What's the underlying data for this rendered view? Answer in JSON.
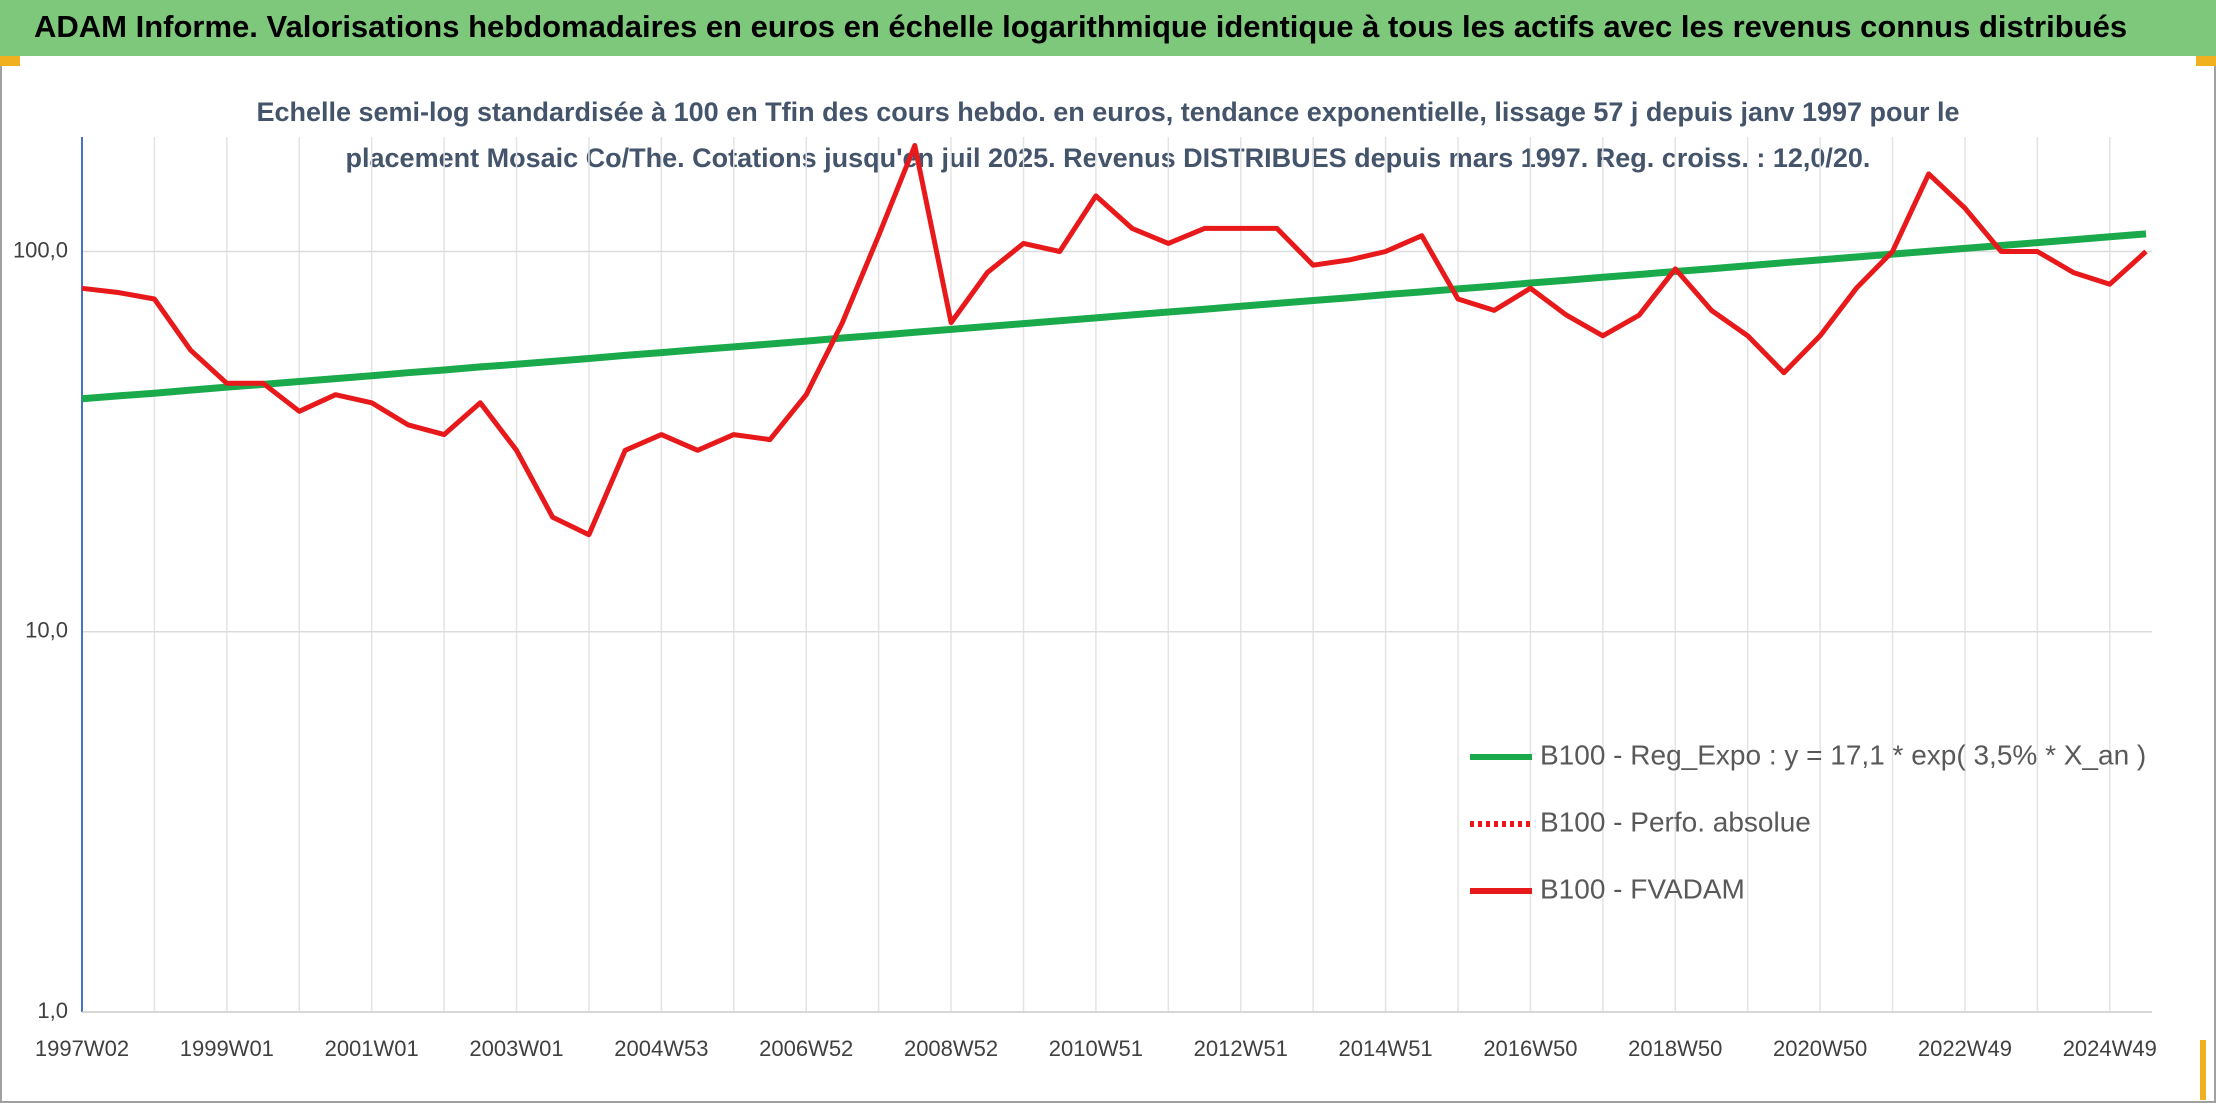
{
  "chart_data": {
    "type": "line",
    "title": "ADAM Informe. Valorisations hebdomadaires en euros en échelle logarithmique identique à tous les actifs avec les revenus connus distribués",
    "subtitle": [
      "Echelle semi-log standardisée à 100 en Tfin des cours hebdo. en euros, tendance exponentielle, lissage 57 j depuis janv 1997 pour le",
      "placement Mosaic Co/The. Cotations jusqu'en juil 2025. Revenus DISTRIBUES depuis mars 1997. Reg. croiss. : 12,0/20."
    ],
    "categories": [
      "1997W02",
      null,
      null,
      null,
      "1999W01",
      null,
      null,
      null,
      "2001W01",
      null,
      null,
      null,
      "2003W01",
      null,
      null,
      null,
      "2004W53",
      null,
      null,
      null,
      "2006W52",
      null,
      null,
      null,
      "2008W52",
      null,
      null,
      null,
      "2010W51",
      null,
      null,
      null,
      "2012W51",
      null,
      null,
      null,
      "2014W51",
      null,
      null,
      null,
      "2016W50",
      null,
      null,
      null,
      "2018W50",
      null,
      null,
      null,
      "2020W50",
      null,
      null,
      null,
      "2022W49",
      null,
      null,
      null,
      "2024W49",
      null
    ],
    "series": [
      {
        "name": "B100 - Reg_Expo : y = 17,1 * exp( 3,5% *  X_an )",
        "color": "#1aaa4b",
        "line": "solid",
        "values": [
          41.0,
          41.7,
          42.4,
          43.2,
          44.0,
          44.7,
          45.5,
          46.3,
          47.1,
          48.0,
          48.8,
          49.7,
          50.5,
          51.4,
          52.3,
          53.3,
          54.2,
          55.2,
          56.1,
          57.1,
          58.1,
          59.2,
          60.2,
          61.3,
          62.4,
          63.5,
          64.6,
          65.7,
          66.9,
          68.1,
          69.3,
          70.5,
          71.8,
          73.0,
          74.3,
          75.6,
          77.0,
          78.3,
          79.7,
          81.1,
          82.6,
          84.0,
          85.5,
          87.0,
          88.6,
          90.1,
          91.7,
          93.4,
          95.0,
          96.7,
          98.4,
          100.1,
          101.9,
          103.7,
          105.5,
          107.4,
          109.3,
          111.2
        ]
      },
      {
        "name": "B100 - Perfo. absolue",
        "color": "#e8191b",
        "line": "dotted",
        "values": [
          null,
          null,
          null,
          null,
          null,
          null,
          null,
          null,
          null,
          null,
          null,
          null,
          null,
          null,
          null,
          null,
          null,
          null,
          null,
          null,
          null,
          null,
          null,
          null,
          null,
          null,
          null,
          null,
          null,
          null,
          null,
          null,
          null,
          null,
          null,
          null,
          null,
          null,
          null,
          null,
          null,
          null,
          null,
          null,
          null,
          null,
          null,
          null,
          null,
          null,
          null,
          null,
          null,
          null,
          null,
          null,
          null,
          null
        ]
      },
      {
        "name": "B100 - FVADAM",
        "color": "#e8191b",
        "line": "solid",
        "values": [
          80,
          78,
          75,
          55,
          45,
          45,
          38,
          42,
          40,
          35,
          33,
          40,
          30,
          20,
          18,
          30,
          33,
          30,
          33,
          32,
          42,
          65,
          110,
          190,
          65,
          88,
          105,
          100,
          140,
          115,
          105,
          115,
          115,
          115,
          92,
          95,
          100,
          110,
          75,
          70,
          80,
          68,
          60,
          68,
          90,
          70,
          60,
          48,
          60,
          80,
          100,
          160,
          130,
          100,
          100,
          88,
          82,
          100
        ]
      }
    ],
    "log_scale": true,
    "ylim": [
      1,
      200
    ],
    "yticks": [
      {
        "value": 1,
        "label": "1,0"
      },
      {
        "value": 10,
        "label": "10,0"
      },
      {
        "value": 100,
        "label": "100,0"
      }
    ],
    "grid": true,
    "legend": "lower right"
  }
}
